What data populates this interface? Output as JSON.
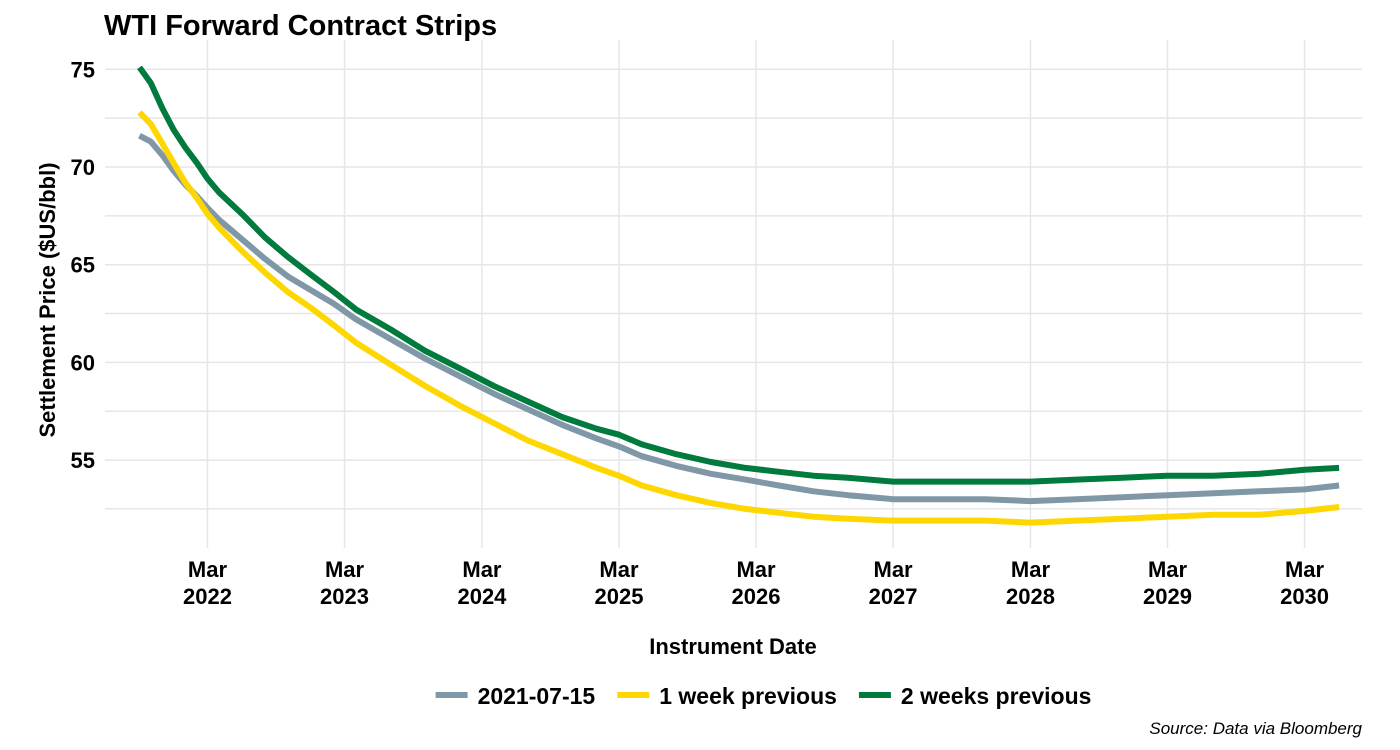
{
  "chart_data": {
    "type": "line",
    "title": "WTI Forward Contract Strips",
    "xlabel": "Instrument Date",
    "ylabel": "Settlement Price ($US/bbl)",
    "caption": "Source: Data via Bloomberg",
    "ylim": [
      50.5,
      76.5
    ],
    "xlim": [
      "2021-06-01",
      "2030-08-01"
    ],
    "y_ticks": [
      55,
      60,
      65,
      70,
      75
    ],
    "x_ticks": [
      {
        "date": "2022-03-01",
        "month": "Mar",
        "year": "2022"
      },
      {
        "date": "2023-03-01",
        "month": "Mar",
        "year": "2023"
      },
      {
        "date": "2024-03-01",
        "month": "Mar",
        "year": "2024"
      },
      {
        "date": "2025-03-01",
        "month": "Mar",
        "year": "2025"
      },
      {
        "date": "2026-03-01",
        "month": "Mar",
        "year": "2026"
      },
      {
        "date": "2027-03-01",
        "month": "Mar",
        "year": "2027"
      },
      {
        "date": "2028-03-01",
        "month": "Mar",
        "year": "2028"
      },
      {
        "date": "2029-03-01",
        "month": "Mar",
        "year": "2029"
      },
      {
        "date": "2030-03-01",
        "month": "Mar",
        "year": "2030"
      }
    ],
    "grid": true,
    "legend_position": "bottom",
    "series": [
      {
        "name": "2021-07-15",
        "color": "#7F97A6",
        "points": [
          [
            "2021-09-01",
            71.6
          ],
          [
            "2021-10-01",
            71.3
          ],
          [
            "2021-11-01",
            70.6
          ],
          [
            "2021-12-01",
            69.8
          ],
          [
            "2022-01-01",
            69.1
          ],
          [
            "2022-02-01",
            68.5
          ],
          [
            "2022-03-01",
            67.9
          ],
          [
            "2022-04-01",
            67.3
          ],
          [
            "2022-06-01",
            66.3
          ],
          [
            "2022-08-01",
            65.3
          ],
          [
            "2022-10-01",
            64.4
          ],
          [
            "2022-12-01",
            63.7
          ],
          [
            "2023-02-01",
            63.0
          ],
          [
            "2023-04-01",
            62.2
          ],
          [
            "2023-07-01",
            61.2
          ],
          [
            "2023-10-01",
            60.2
          ],
          [
            "2024-01-01",
            59.3
          ],
          [
            "2024-04-01",
            58.4
          ],
          [
            "2024-07-01",
            57.6
          ],
          [
            "2024-10-01",
            56.8
          ],
          [
            "2025-01-01",
            56.1
          ],
          [
            "2025-03-01",
            55.7
          ],
          [
            "2025-05-01",
            55.2
          ],
          [
            "2025-08-01",
            54.7
          ],
          [
            "2025-11-01",
            54.3
          ],
          [
            "2026-02-01",
            54.0
          ],
          [
            "2026-05-01",
            53.7
          ],
          [
            "2026-08-01",
            53.4
          ],
          [
            "2026-11-01",
            53.2
          ],
          [
            "2027-03-01",
            53.0
          ],
          [
            "2027-07-01",
            53.0
          ],
          [
            "2027-11-01",
            53.0
          ],
          [
            "2028-03-01",
            52.9
          ],
          [
            "2028-07-01",
            53.0
          ],
          [
            "2028-11-01",
            53.1
          ],
          [
            "2029-03-01",
            53.2
          ],
          [
            "2029-07-01",
            53.3
          ],
          [
            "2029-11-01",
            53.4
          ],
          [
            "2030-03-01",
            53.5
          ],
          [
            "2030-06-01",
            53.7
          ]
        ]
      },
      {
        "name": "1 week previous",
        "color": "#FFD700",
        "points": [
          [
            "2021-09-01",
            72.8
          ],
          [
            "2021-10-01",
            72.2
          ],
          [
            "2021-11-01",
            71.2
          ],
          [
            "2021-12-01",
            70.2
          ],
          [
            "2022-01-01",
            69.2
          ],
          [
            "2022-02-01",
            68.4
          ],
          [
            "2022-03-01",
            67.6
          ],
          [
            "2022-04-01",
            66.9
          ],
          [
            "2022-06-01",
            65.7
          ],
          [
            "2022-08-01",
            64.6
          ],
          [
            "2022-10-01",
            63.6
          ],
          [
            "2022-12-01",
            62.8
          ],
          [
            "2023-02-01",
            61.9
          ],
          [
            "2023-04-01",
            61.0
          ],
          [
            "2023-07-01",
            59.9
          ],
          [
            "2023-10-01",
            58.8
          ],
          [
            "2024-01-01",
            57.8
          ],
          [
            "2024-04-01",
            56.9
          ],
          [
            "2024-07-01",
            56.0
          ],
          [
            "2024-10-01",
            55.3
          ],
          [
            "2025-01-01",
            54.6
          ],
          [
            "2025-03-01",
            54.2
          ],
          [
            "2025-05-01",
            53.7
          ],
          [
            "2025-08-01",
            53.2
          ],
          [
            "2025-11-01",
            52.8
          ],
          [
            "2026-02-01",
            52.5
          ],
          [
            "2026-05-01",
            52.3
          ],
          [
            "2026-08-01",
            52.1
          ],
          [
            "2026-11-01",
            52.0
          ],
          [
            "2027-03-01",
            51.9
          ],
          [
            "2027-07-01",
            51.9
          ],
          [
            "2027-11-01",
            51.9
          ],
          [
            "2028-03-01",
            51.8
          ],
          [
            "2028-07-01",
            51.9
          ],
          [
            "2028-11-01",
            52.0
          ],
          [
            "2029-03-01",
            52.1
          ],
          [
            "2029-07-01",
            52.2
          ],
          [
            "2029-11-01",
            52.2
          ],
          [
            "2030-03-01",
            52.4
          ],
          [
            "2030-06-01",
            52.6
          ]
        ]
      },
      {
        "name": "2 weeks previous",
        "color": "#007A3D",
        "points": [
          [
            "2021-09-01",
            75.1
          ],
          [
            "2021-10-01",
            74.3
          ],
          [
            "2021-11-01",
            73.0
          ],
          [
            "2021-12-01",
            71.9
          ],
          [
            "2022-01-01",
            71.0
          ],
          [
            "2022-02-01",
            70.2
          ],
          [
            "2022-03-01",
            69.4
          ],
          [
            "2022-04-01",
            68.7
          ],
          [
            "2022-06-01",
            67.6
          ],
          [
            "2022-08-01",
            66.4
          ],
          [
            "2022-10-01",
            65.4
          ],
          [
            "2022-12-01",
            64.5
          ],
          [
            "2023-02-01",
            63.6
          ],
          [
            "2023-04-01",
            62.7
          ],
          [
            "2023-07-01",
            61.7
          ],
          [
            "2023-10-01",
            60.6
          ],
          [
            "2024-01-01",
            59.7
          ],
          [
            "2024-04-01",
            58.8
          ],
          [
            "2024-07-01",
            58.0
          ],
          [
            "2024-10-01",
            57.2
          ],
          [
            "2025-01-01",
            56.6
          ],
          [
            "2025-03-01",
            56.3
          ],
          [
            "2025-05-01",
            55.8
          ],
          [
            "2025-08-01",
            55.3
          ],
          [
            "2025-11-01",
            54.9
          ],
          [
            "2026-02-01",
            54.6
          ],
          [
            "2026-05-01",
            54.4
          ],
          [
            "2026-08-01",
            54.2
          ],
          [
            "2026-11-01",
            54.1
          ],
          [
            "2027-03-01",
            53.9
          ],
          [
            "2027-07-01",
            53.9
          ],
          [
            "2027-11-01",
            53.9
          ],
          [
            "2028-03-01",
            53.9
          ],
          [
            "2028-07-01",
            54.0
          ],
          [
            "2028-11-01",
            54.1
          ],
          [
            "2029-03-01",
            54.2
          ],
          [
            "2029-07-01",
            54.2
          ],
          [
            "2029-11-01",
            54.3
          ],
          [
            "2030-03-01",
            54.5
          ],
          [
            "2030-06-01",
            54.6
          ]
        ]
      }
    ]
  }
}
